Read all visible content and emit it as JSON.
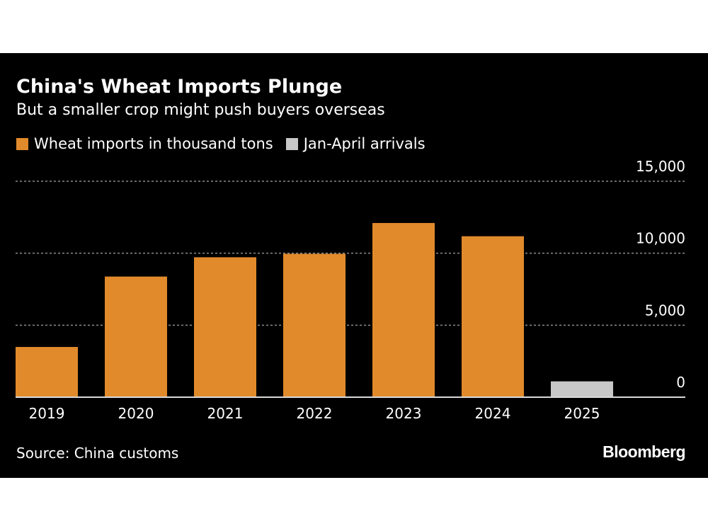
{
  "chart_data": {
    "type": "bar",
    "title": "China's Wheat Imports Plunge",
    "subtitle": "But a smaller crop might push buyers overseas",
    "categories": [
      "2019",
      "2020",
      "2021",
      "2022",
      "2023",
      "2024",
      "2025"
    ],
    "values": [
      3490,
      8380,
      9720,
      9960,
      12100,
      11180,
      1100
    ],
    "series_index": [
      0,
      0,
      0,
      0,
      0,
      0,
      1
    ],
    "legend": [
      {
        "label": "Wheat imports in thousand tons",
        "color": "#E18A2B"
      },
      {
        "label": "Jan-April arrivals",
        "color": "#C8C8C8"
      }
    ],
    "y_ticks": [
      0,
      5000,
      10000,
      15000
    ],
    "y_tick_labels": [
      "0",
      "5,000",
      "10,000",
      "15,000"
    ],
    "ylim": [
      0,
      15000
    ],
    "xlabel": "",
    "ylabel": "",
    "grid": true,
    "legend_position": "top-left",
    "axis_side": "right"
  },
  "footer": {
    "source": "Source: China customs",
    "brand": "Bloomberg"
  },
  "colors": {
    "background": "#000000",
    "grid": "#8c8c8c",
    "baseline": "#d9d9d9"
  }
}
